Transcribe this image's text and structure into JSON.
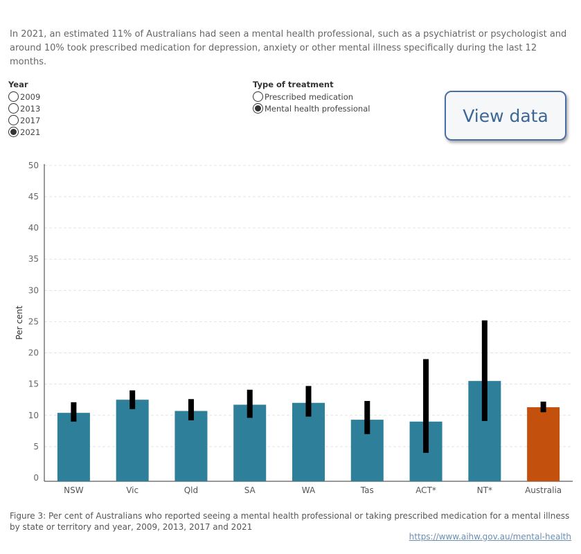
{
  "intro_text": "In 2021, an estimated 11% of Australians had seen a mental health professional, such as a psychiatrist or psychologist and around 10% took prescribed medication for depression, anxiety or other mental illness specifically during the last 12 months.",
  "year_filter": {
    "title": "Year",
    "options": [
      "2009",
      "2013",
      "2017",
      "2021"
    ],
    "selected": "2021"
  },
  "treatment_filter": {
    "title": "Type of treatment",
    "options": [
      "Prescribed medication",
      "Mental health professional"
    ],
    "selected": "Mental health professional"
  },
  "view_data_label": "View data",
  "colors": {
    "bar": "#2e7f99",
    "australia_bar": "#c4500e",
    "error_bar": "#000000",
    "grid": "#e3e3e3"
  },
  "chart_data": {
    "type": "bar",
    "ylabel": "Per cent",
    "ylim": [
      0,
      50
    ],
    "yticks": [
      0,
      5,
      10,
      15,
      20,
      25,
      30,
      35,
      40,
      45,
      50
    ],
    "grid": true,
    "categories": [
      "NSW",
      "Vic",
      "Qld",
      "SA",
      "WA",
      "Tas",
      "ACT*",
      "NT*",
      "Australia"
    ],
    "values": [
      10.4,
      12.5,
      10.7,
      11.7,
      12.0,
      9.3,
      9.0,
      15.5,
      11.3
    ],
    "ci_lower": [
      9.0,
      11.0,
      9.2,
      9.6,
      9.8,
      7.0,
      4.0,
      9.1,
      10.5
    ],
    "ci_upper": [
      12.1,
      14.0,
      12.6,
      14.1,
      14.7,
      12.3,
      19.0,
      25.2,
      12.2
    ],
    "highlight": "Australia"
  },
  "caption": "Figure 3: Per cent of Australians who reported seeing a mental health professional or taking prescribed medication for a mental illness by state or territory and year, 2009, 2013, 2017 and 2021",
  "source_link": "https://www.aihw.gov.au/mental-health"
}
